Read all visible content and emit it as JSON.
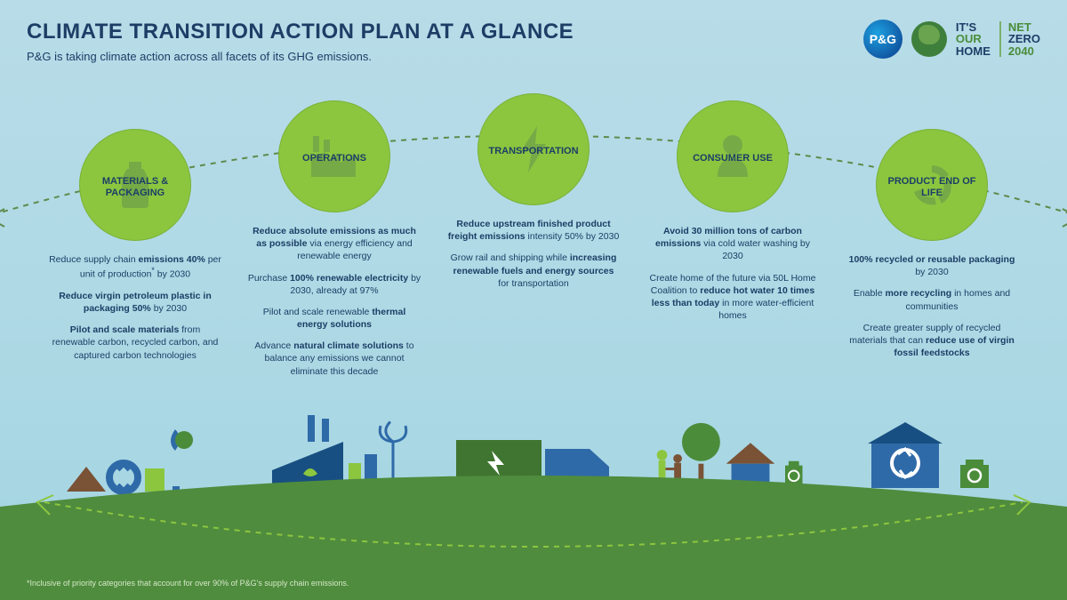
{
  "colors": {
    "sky_top": "#b8dce8",
    "sky_bottom": "#a4d5e2",
    "circle": "#8cc63f",
    "heading": "#1c3e66",
    "text": "#1c3e66",
    "ground": "#4f8c3e",
    "ground_dark": "#3f7530",
    "dash": "#5f8a4c",
    "illus_blue": "#2f6aa8",
    "illus_darkblue": "#184f82",
    "illus_green": "#4a8c3a",
    "illus_lightgreen": "#8cc63f",
    "illus_brown": "#7a5236"
  },
  "header": {
    "title": "CLIMATE TRANSITION ACTION PLAN AT A GLANCE",
    "subtitle": "P&G is taking climate action across all facets of its GHG emissions.",
    "pg": "P&G",
    "its": "IT'S",
    "our": "OUR",
    "home": "HOME",
    "net": "NET",
    "zero": "ZERO",
    "year": "2040"
  },
  "pillars": [
    {
      "label": "MATERIALS & PACKAGING",
      "icon": "bottle",
      "body": [
        "Reduce supply chain <strong>emissions 40%</strong> per unit of production<sup>*</sup> by 2030",
        "<strong>Reduce virgin petroleum plastic in packaging 50%</strong> by 2030",
        "<strong>Pilot and scale materials</strong> from renewable carbon, recycled carbon, and captured carbon technologies"
      ]
    },
    {
      "label": "OPERATIONS",
      "icon": "factory",
      "body": [
        "<strong>Reduce absolute emissions as much as possible</strong> via energy efficiency and renewable energy",
        "Purchase <strong>100% renewable electricity</strong> by 2030, already at 97%",
        "Pilot and scale renewable <strong>thermal energy solutions</strong>",
        "Advance <strong>natural climate solutions</strong> to balance any emissions we cannot eliminate this decade"
      ]
    },
    {
      "label": "TRANSPORTATION",
      "icon": "bolt",
      "body": [
        "<strong>Reduce upstream finished product freight emissions</strong> intensity 50% by 2030",
        "Grow rail and shipping while <strong>increasing renewable fuels and energy sources</strong> for transportation"
      ]
    },
    {
      "label": "CONSUMER USE",
      "icon": "person",
      "body": [
        "<strong>Avoid 30 million tons of carbon emissions</strong> via cold water washing by 2030",
        "Create home of the future via 50L Home Coalition to <strong>reduce hot water 10 times less than today</strong> in more water-efficient homes"
      ]
    },
    {
      "label": "PRODUCT END OF LIFE",
      "icon": "recycle",
      "body": [
        "<strong>100% recycled or reusable packaging</strong> by 2030",
        "Enable <strong>more recycling</strong> in homes and communities",
        "Create greater supply of recycled materials that can <strong>reduce use of virgin fossil feedstocks</strong>"
      ]
    }
  ],
  "footnote": "*Inclusive of priority categories that account for over 90% of P&G's supply chain emissions."
}
